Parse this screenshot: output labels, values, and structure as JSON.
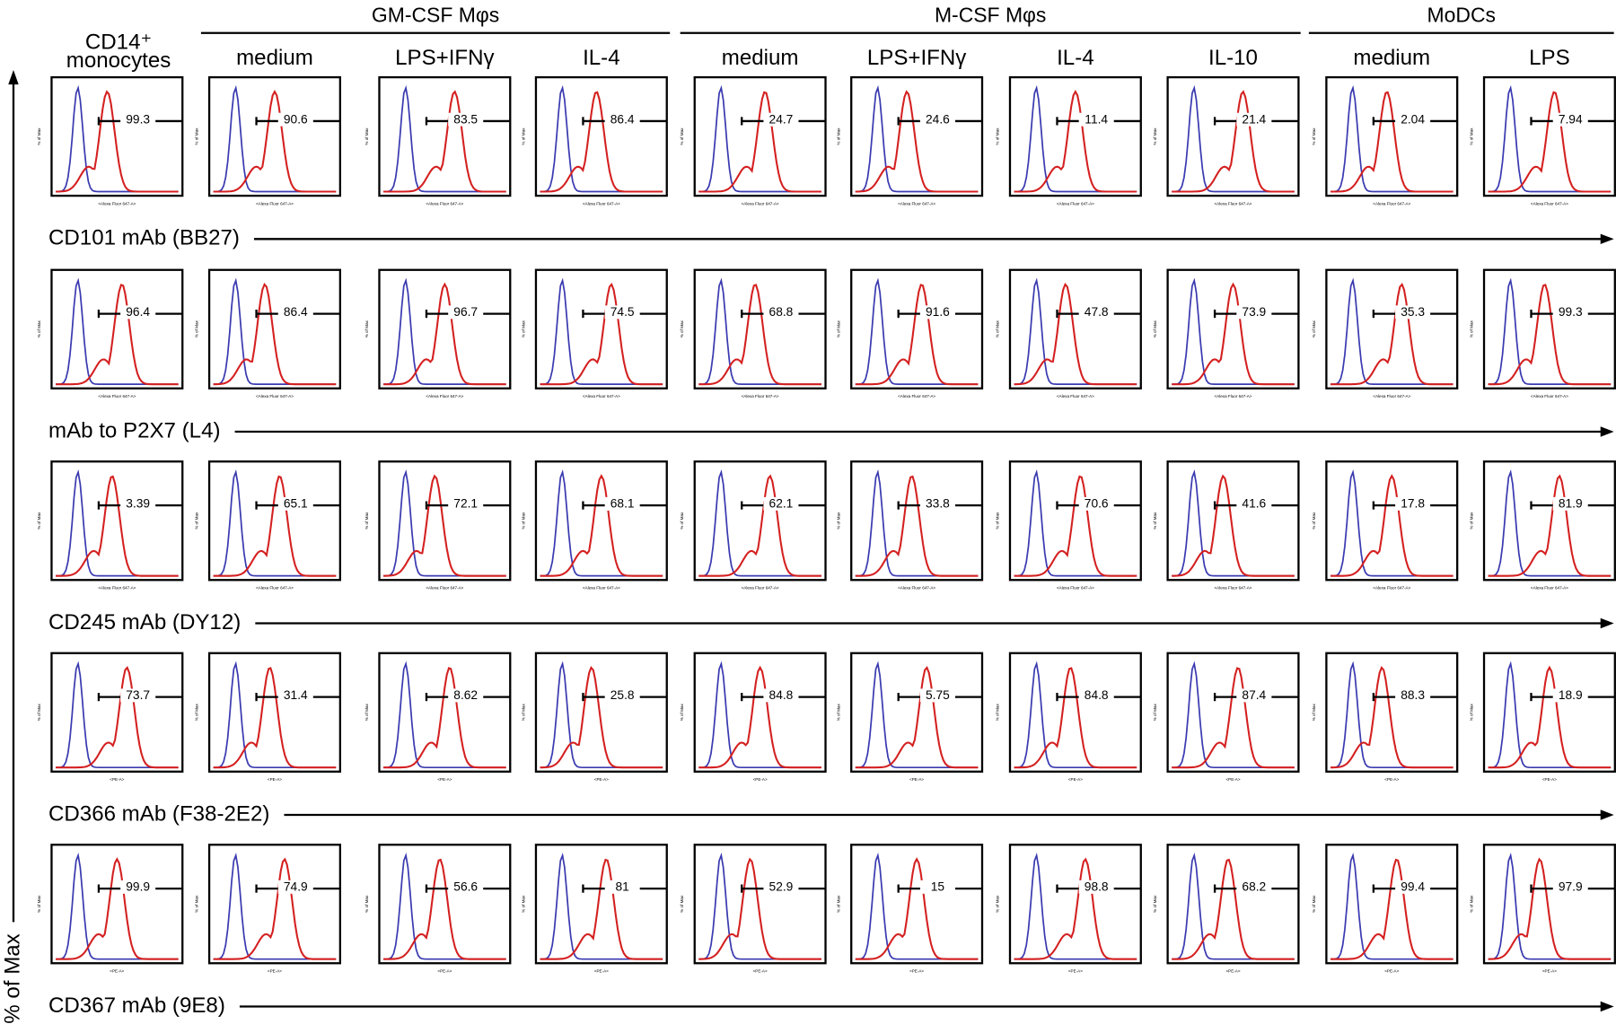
{
  "figure": {
    "header": {
      "first_column": [
        "CD14⁺",
        "monocytes"
      ],
      "groups": [
        {
          "label": "GM-CSF Mφs",
          "columns": [
            "medium",
            "LPS+IFNγ",
            "IL-4"
          ]
        },
        {
          "label": "M-CSF Mφs",
          "columns": [
            "medium",
            "LPS+IFNγ",
            "IL-4",
            "IL-10"
          ]
        },
        {
          "label": "MoDCs",
          "columns": [
            "medium",
            "LPS"
          ]
        }
      ]
    },
    "y_label": "% of Max",
    "rows": [
      {
        "label": "CD101 mAb (BB27)",
        "x_axis": "<Alexa Fluor 647-A>",
        "values": [
          99.3,
          90.6,
          83.5,
          86.4,
          24.7,
          24.6,
          11.4,
          21.4,
          2.04,
          7.94
        ]
      },
      {
        "label": "mAb to P2X7 (L4)",
        "x_axis": "<Alexa Fluor 647-A>",
        "values": [
          96.4,
          86.4,
          96.7,
          74.5,
          68.8,
          91.6,
          47.8,
          73.9,
          35.3,
          99.3
        ]
      },
      {
        "label": "CD245 mAb (DY12)",
        "x_axis": "<Alexa Fluor 647-A>",
        "values": [
          3.39,
          65.1,
          72.1,
          68.1,
          62.1,
          33.8,
          70.6,
          41.6,
          17.8,
          81.9
        ]
      },
      {
        "label": "CD366 mAb (F38-2E2)",
        "x_axis": "<PE-A>",
        "values": [
          73.7,
          31.4,
          8.62,
          25.8,
          84.8,
          5.75,
          84.8,
          87.4,
          88.3,
          18.9
        ]
      },
      {
        "label": "CD367 mAb (9E8)",
        "x_axis": "<PE-A>",
        "values": [
          99.9,
          74.9,
          56.6,
          81,
          52.9,
          15,
          98.8,
          68.2,
          99.4,
          97.9
        ]
      }
    ]
  }
}
